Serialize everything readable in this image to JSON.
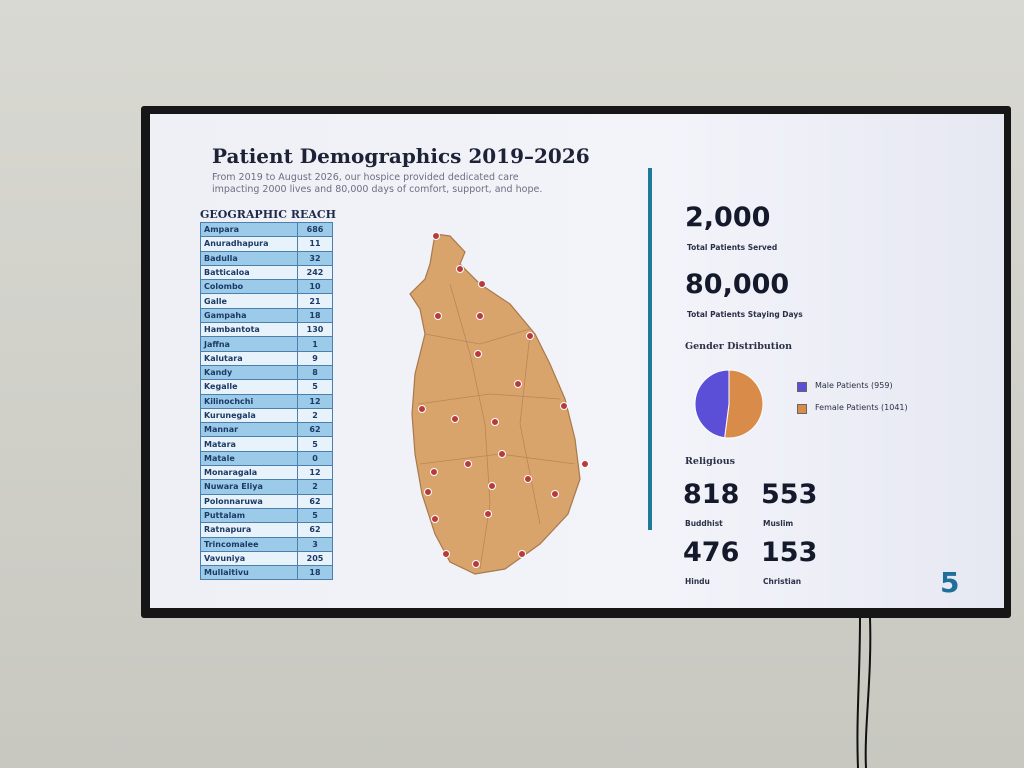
{
  "slide": {
    "title": "Patient Demographics 2019–2026",
    "subtitle": "From 2019 to August 2026, our hospice provided dedicated care impacting 2000 lives and 80,000 days of comfort, support, and hope.",
    "table": {
      "title": "GEOGRAPHIC REACH",
      "rows": [
        [
          "Ampara",
          686
        ],
        [
          "Anuradhapura",
          11
        ],
        [
          "Badulla",
          32
        ],
        [
          "Batticaloa",
          242
        ],
        [
          "Colombo",
          10
        ],
        [
          "Galle",
          21
        ],
        [
          "Gampaha",
          18
        ],
        [
          "Hambantota",
          130
        ],
        [
          "Jaffna",
          1
        ],
        [
          "Kalutara",
          9
        ],
        [
          "Kandy",
          8
        ],
        [
          "Kegalle",
          5
        ],
        [
          "Kilinochchi",
          12
        ],
        [
          "Kurunegala",
          2
        ],
        [
          "Mannar",
          62
        ],
        [
          "Matara",
          5
        ],
        [
          "Matale",
          0
        ],
        [
          "Monaragala",
          12
        ],
        [
          "Nuwara Eliya",
          2
        ],
        [
          "Polonnaruwa",
          62
        ],
        [
          "Puttalam",
          5
        ],
        [
          "Ratnapura",
          62
        ],
        [
          "Trincomalee",
          3
        ],
        [
          "Vavuniya",
          205
        ],
        [
          "Mullaitivu",
          18
        ]
      ]
    },
    "stats": [
      {
        "value": "2,000",
        "label": "Total Patients Served"
      },
      {
        "value": "80,000",
        "label": "Total Patients Staying Days"
      }
    ],
    "gender": {
      "title": "Gender Distribution",
      "slices": [
        {
          "label": "Female Patients (1041)",
          "value": 1041,
          "color": "#d98c4a"
        },
        {
          "label": "Male Patients (959)",
          "value": 959,
          "color": "#5b4fd8"
        }
      ]
    },
    "religious": {
      "title": "Religious",
      "items": [
        {
          "value": 818,
          "label": "Buddhist"
        },
        {
          "value": 553,
          "label": "Muslim"
        },
        {
          "value": 476,
          "label": "Hindu"
        },
        {
          "value": 153,
          "label": "Christian"
        }
      ]
    },
    "page_number": 5
  }
}
